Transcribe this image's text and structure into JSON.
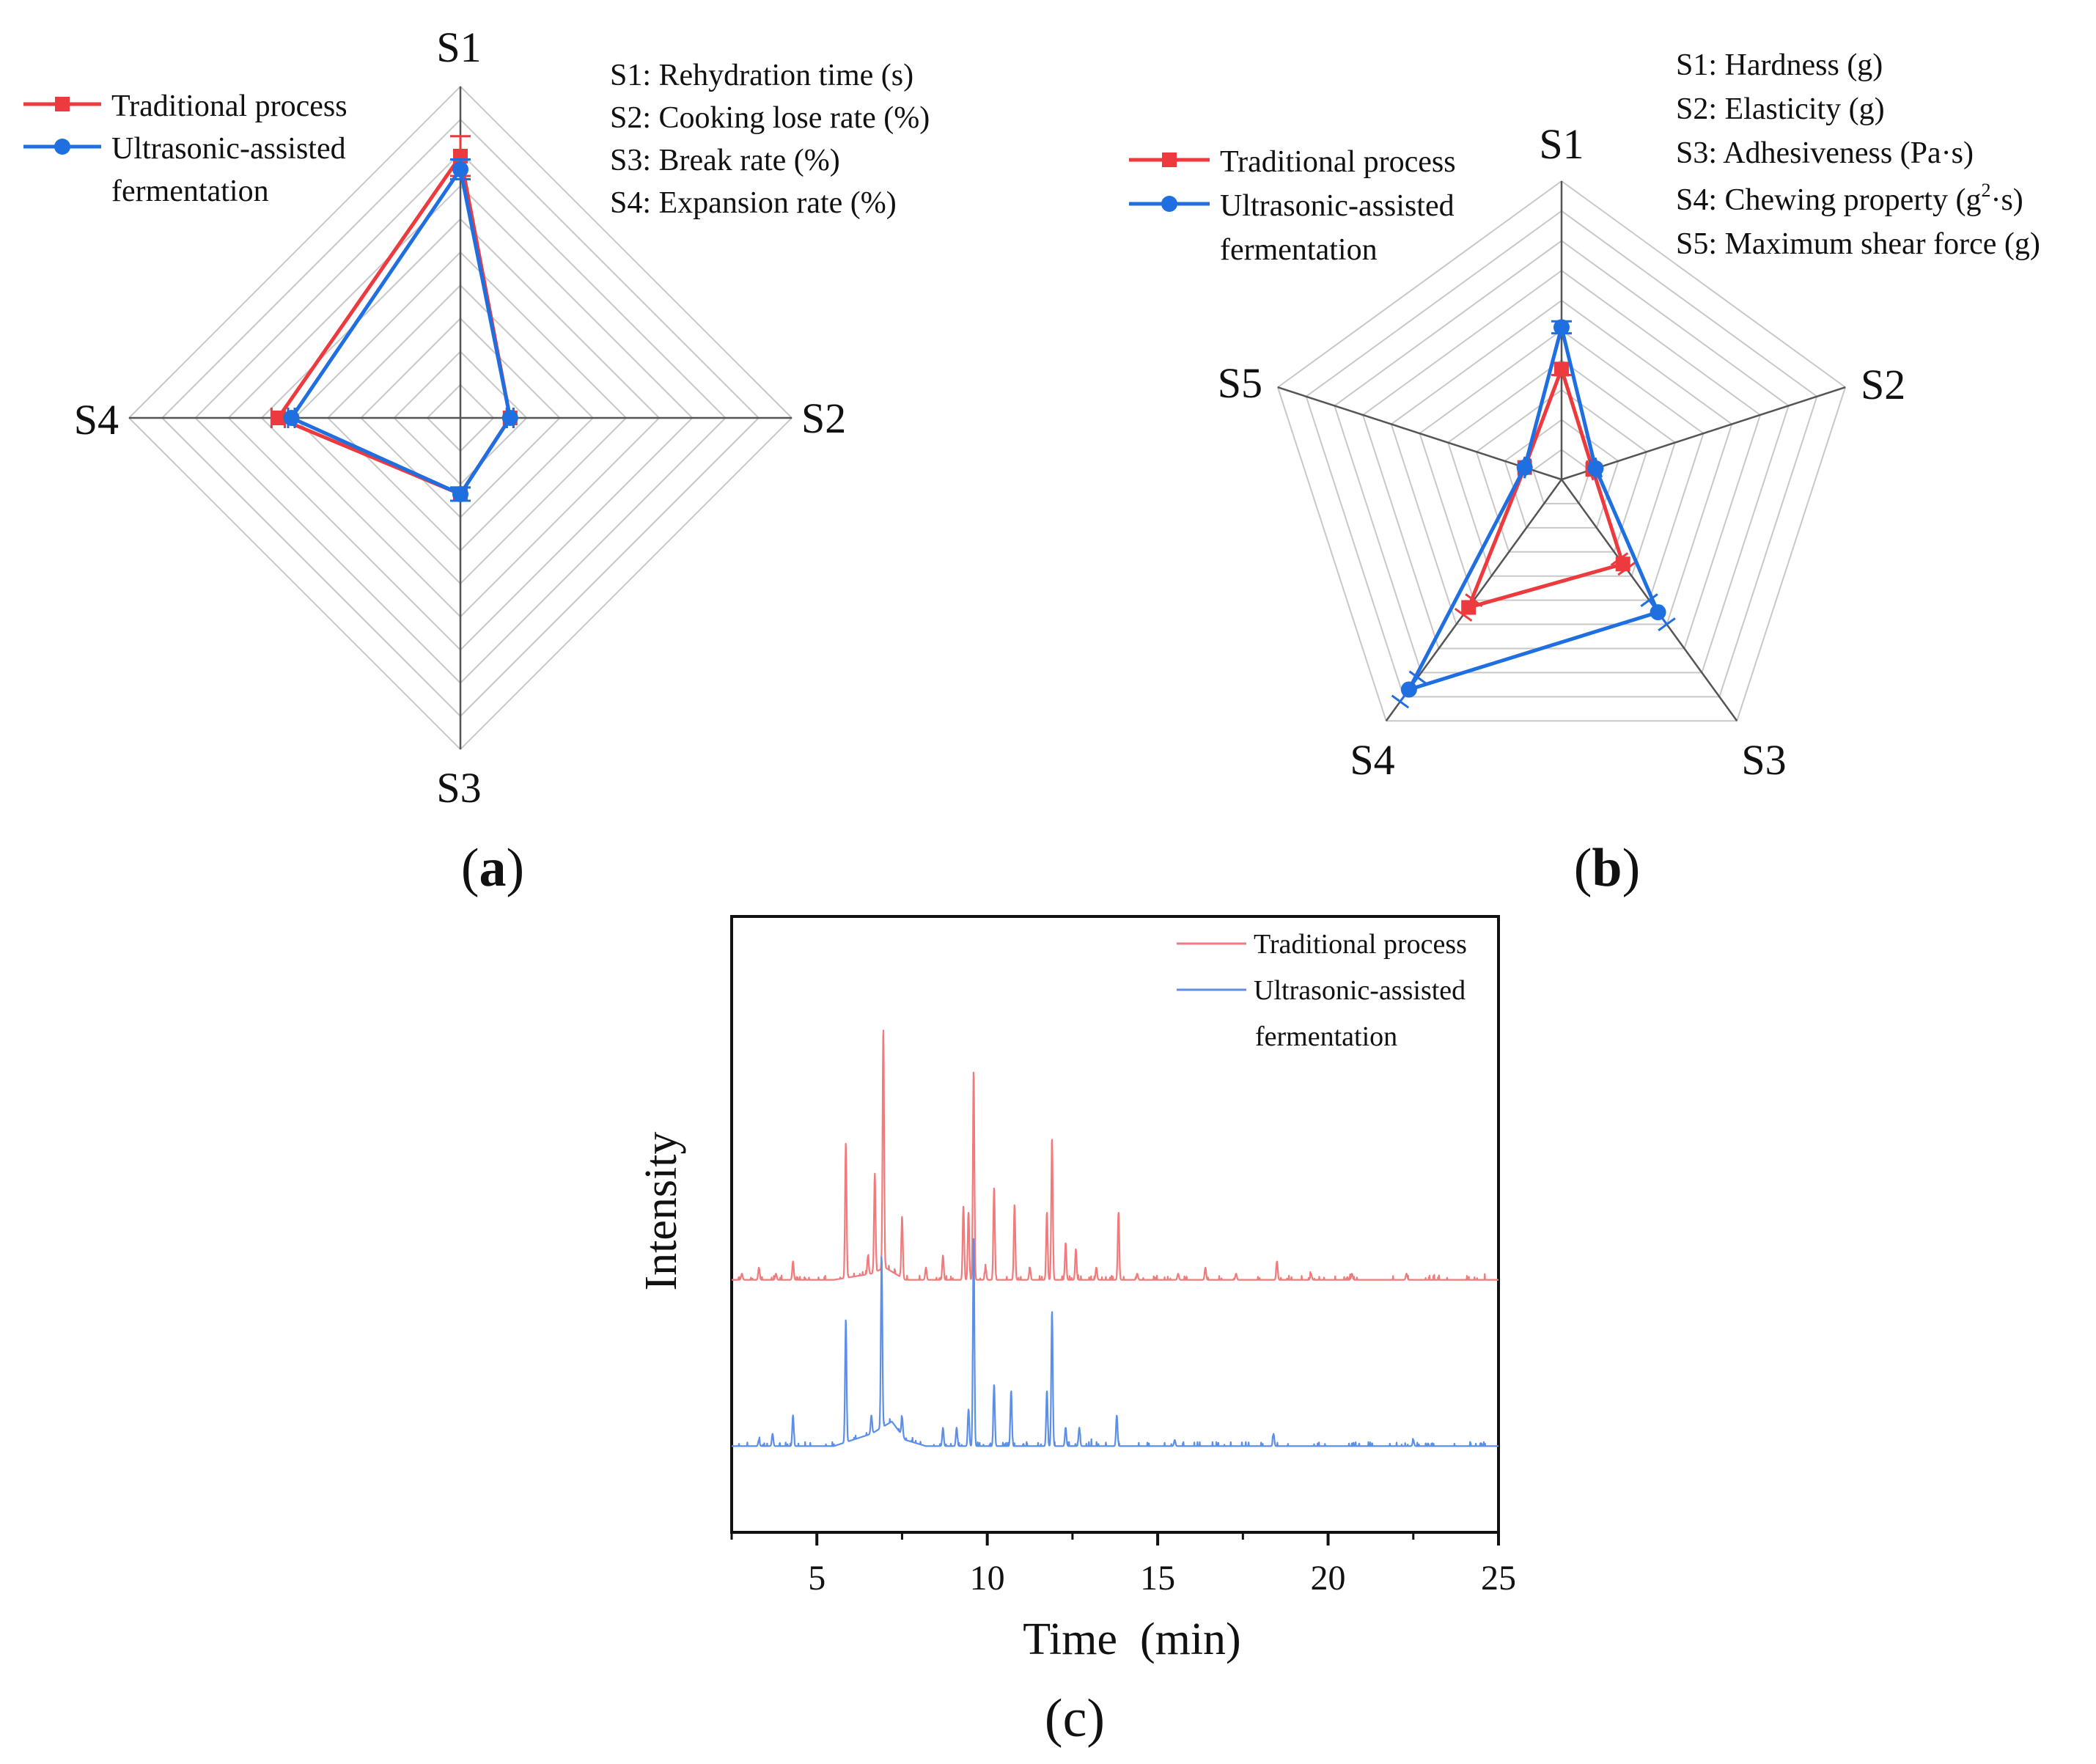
{
  "colors": {
    "traditional": "#ec3a3e",
    "ultrasonic": "#1f6fe0",
    "grid": "#c8c8c8",
    "axis": "#555555",
    "trad_light": "#f07a7c",
    "ultra_light": "#5d8fe6"
  },
  "panels": {
    "a": {
      "label": "a",
      "open": "(",
      "close": ")"
    },
    "b": {
      "label": "b",
      "open": "(",
      "close": ")"
    },
    "c": {
      "label": "(c)"
    }
  },
  "chart_data": [
    {
      "id": "a",
      "type": "radar",
      "axes": [
        "S1",
        "S2",
        "S3",
        "S4"
      ],
      "rings": 10,
      "legend_position": "top-left",
      "legend": [
        "Traditional process",
        "Ultrasonic-assisted",
        "fermentation"
      ],
      "key": [
        "S1: Rehydration time (s)",
        "S2: Cooking lose rate (%)",
        "S3: Break rate (%)",
        "S4: Expansion rate (%)"
      ],
      "series": [
        {
          "name": "Traditional process",
          "values": [
            0.79,
            0.15,
            0.23,
            0.55
          ],
          "errors": [
            0.06,
            0.01,
            0.02,
            0.02
          ]
        },
        {
          "name": "Ultrasonic-assisted fermentation",
          "values": [
            0.75,
            0.15,
            0.23,
            0.51
          ],
          "errors": [
            0.03,
            0.01,
            0.02,
            0.01
          ]
        }
      ]
    },
    {
      "id": "b",
      "type": "radar",
      "axes": [
        "S1",
        "S2",
        "S3",
        "S4",
        "S5"
      ],
      "rings": 10,
      "legend_position": "top-left",
      "legend": [
        "Traditional process",
        "Ultrasonic-assisted",
        "fermentation"
      ],
      "key": [
        {
          "text": "S1: Hardness (g)"
        },
        {
          "text": "S2: Elasticity (g)"
        },
        {
          "text": "S3: Adhesiveness (Pa·s)"
        },
        {
          "text": "S4: Chewing property (g",
          "sup": "2",
          "after": "·s)"
        },
        {
          "text": "S5: Maximum shear force (g)"
        }
      ],
      "series": [
        {
          "name": "Traditional process",
          "values": [
            0.37,
            0.11,
            0.35,
            0.53,
            0.13
          ],
          "errors": [
            0.02,
            0.01,
            0.02,
            0.03,
            0.01
          ]
        },
        {
          "name": "Ultrasonic-assisted fermentation",
          "values": [
            0.51,
            0.12,
            0.55,
            0.87,
            0.13
          ],
          "errors": [
            0.02,
            0.01,
            0.05,
            0.05,
            0.01
          ]
        }
      ]
    },
    {
      "id": "c",
      "type": "line",
      "xlabel": "Time  (min)",
      "ylabel": "Intensity",
      "xlim": [
        2.5,
        25
      ],
      "xticks": [
        5,
        10,
        15,
        20,
        25
      ],
      "legend_position": "top-right",
      "legend": [
        "Traditional process",
        "Ultrasonic-assisted",
        "fermentation"
      ],
      "series": [
        {
          "name": "Traditional process",
          "baseline": 0.41,
          "drift": [
            [
              2.5,
              0.0
            ],
            [
              5.5,
              0.0
            ],
            [
              6.6,
              0.01
            ],
            [
              7.0,
              0.02
            ],
            [
              7.6,
              0.0
            ],
            [
              25,
              0.0
            ]
          ],
          "peaks": [
            [
              2.8,
              0.01
            ],
            [
              3.3,
              0.02
            ],
            [
              3.8,
              0.01
            ],
            [
              4.3,
              0.03
            ],
            [
              5.85,
              0.22
            ],
            [
              6.5,
              0.03
            ],
            [
              6.7,
              0.16
            ],
            [
              6.95,
              0.39
            ],
            [
              7.5,
              0.1
            ],
            [
              8.2,
              0.02
            ],
            [
              8.7,
              0.04
            ],
            [
              9.3,
              0.12
            ],
            [
              9.45,
              0.11
            ],
            [
              9.6,
              0.34
            ],
            [
              9.95,
              0.02
            ],
            [
              10.2,
              0.15
            ],
            [
              10.8,
              0.12
            ],
            [
              11.25,
              0.02
            ],
            [
              11.75,
              0.11
            ],
            [
              11.9,
              0.23
            ],
            [
              12.3,
              0.06
            ],
            [
              12.6,
              0.05
            ],
            [
              13.2,
              0.02
            ],
            [
              13.85,
              0.11
            ],
            [
              14.4,
              0.01
            ],
            [
              15.6,
              0.01
            ],
            [
              16.4,
              0.02
            ],
            [
              17.3,
              0.01
            ],
            [
              18.5,
              0.03
            ],
            [
              19.5,
              0.01
            ],
            [
              20.7,
              0.01
            ],
            [
              22.3,
              0.01
            ]
          ]
        },
        {
          "name": "Ultrasonic-assisted fermentation",
          "baseline": 0.14,
          "drift": [
            [
              2.5,
              0.0
            ],
            [
              5.5,
              0.0
            ],
            [
              6.6,
              0.02
            ],
            [
              7.2,
              0.04
            ],
            [
              7.6,
              0.01
            ],
            [
              8.2,
              0.0
            ],
            [
              25,
              0.0
            ]
          ],
          "peaks": [
            [
              3.3,
              0.01
            ],
            [
              3.7,
              0.02
            ],
            [
              4.3,
              0.05
            ],
            [
              5.85,
              0.2
            ],
            [
              6.6,
              0.03
            ],
            [
              6.9,
              0.28
            ],
            [
              7.5,
              0.03
            ],
            [
              8.7,
              0.03
            ],
            [
              9.1,
              0.03
            ],
            [
              9.45,
              0.06
            ],
            [
              9.6,
              0.34
            ],
            [
              10.2,
              0.1
            ],
            [
              10.7,
              0.09
            ],
            [
              11.75,
              0.09
            ],
            [
              11.9,
              0.22
            ],
            [
              12.3,
              0.03
            ],
            [
              12.7,
              0.03
            ],
            [
              13.8,
              0.05
            ],
            [
              15.5,
              0.01
            ],
            [
              18.4,
              0.02
            ],
            [
              22.5,
              0.01
            ]
          ]
        }
      ]
    }
  ]
}
